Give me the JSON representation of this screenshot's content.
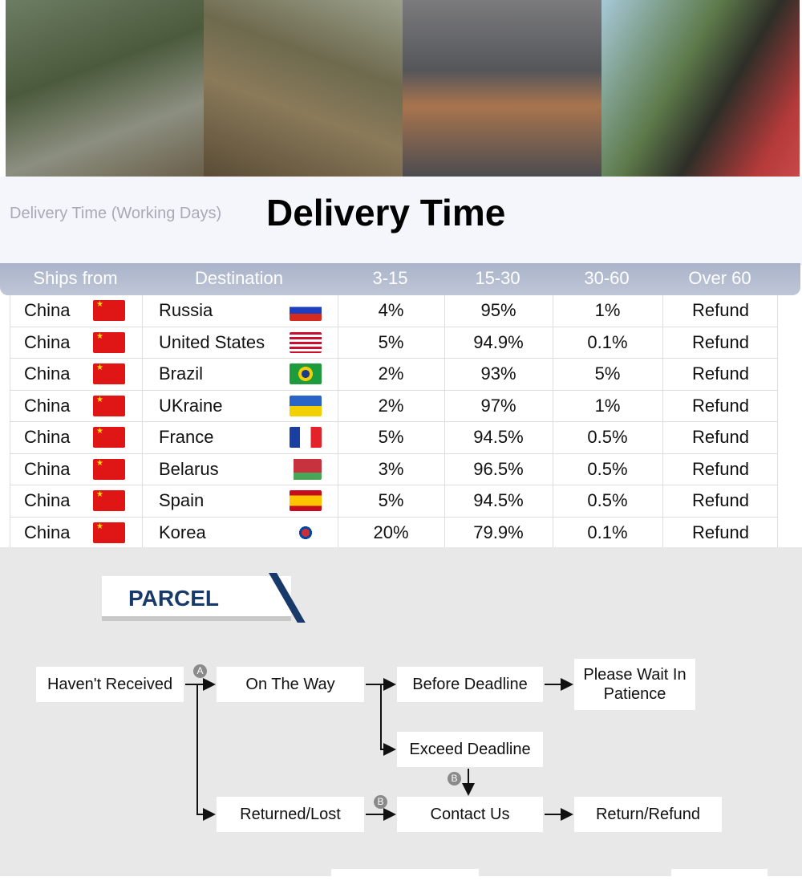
{
  "header": {
    "subtitle": "Delivery Time (Working Days)",
    "title": "Delivery Time"
  },
  "table": {
    "columns": [
      "Ships from",
      "Destination",
      "3-15",
      "15-30",
      "30-60",
      "Over 60"
    ],
    "rows": [
      {
        "from": "China",
        "dest": "Russia",
        "flag": "russia",
        "a": "4%",
        "b": "95%",
        "c": "1%",
        "d": "Refund"
      },
      {
        "from": "China",
        "dest": "United States",
        "flag": "usa",
        "a": "5%",
        "b": "94.9%",
        "c": "0.1%",
        "d": "Refund"
      },
      {
        "from": "China",
        "dest": "Brazil",
        "flag": "brazil",
        "a": "2%",
        "b": "93%",
        "c": "5%",
        "d": "Refund"
      },
      {
        "from": "China",
        "dest": "UKraine",
        "flag": "ukraine",
        "a": "2%",
        "b": "97%",
        "c": "1%",
        "d": "Refund"
      },
      {
        "from": "China",
        "dest": "France",
        "flag": "france",
        "a": "5%",
        "b": "94.5%",
        "c": "0.5%",
        "d": "Refund"
      },
      {
        "from": "China",
        "dest": "Belarus",
        "flag": "belarus",
        "a": "3%",
        "b": "96.5%",
        "c": "0.5%",
        "d": "Refund"
      },
      {
        "from": "China",
        "dest": "Spain",
        "flag": "spain",
        "a": "5%",
        "b": "94.5%",
        "c": "0.5%",
        "d": "Refund"
      },
      {
        "from": "China",
        "dest": "Korea",
        "flag": "korea",
        "a": "20%",
        "b": "79.9%",
        "c": "0.1%",
        "d": "Refund"
      }
    ]
  },
  "parcel": {
    "title": "PARCEL",
    "nodes": {
      "not_received": "Haven't Received",
      "on_way": "On The Way",
      "before": "Before Deadline",
      "wait": "Please Wait In Patience",
      "exceed": "Exceed Deadline",
      "lost": "Returned/Lost",
      "contact": "Contact Us",
      "refund": "Return/Refund"
    },
    "badges": {
      "a": "A",
      "b": "B"
    }
  },
  "colors": {
    "accent": "#173a6b",
    "header_bar": "#b4bcd0"
  }
}
